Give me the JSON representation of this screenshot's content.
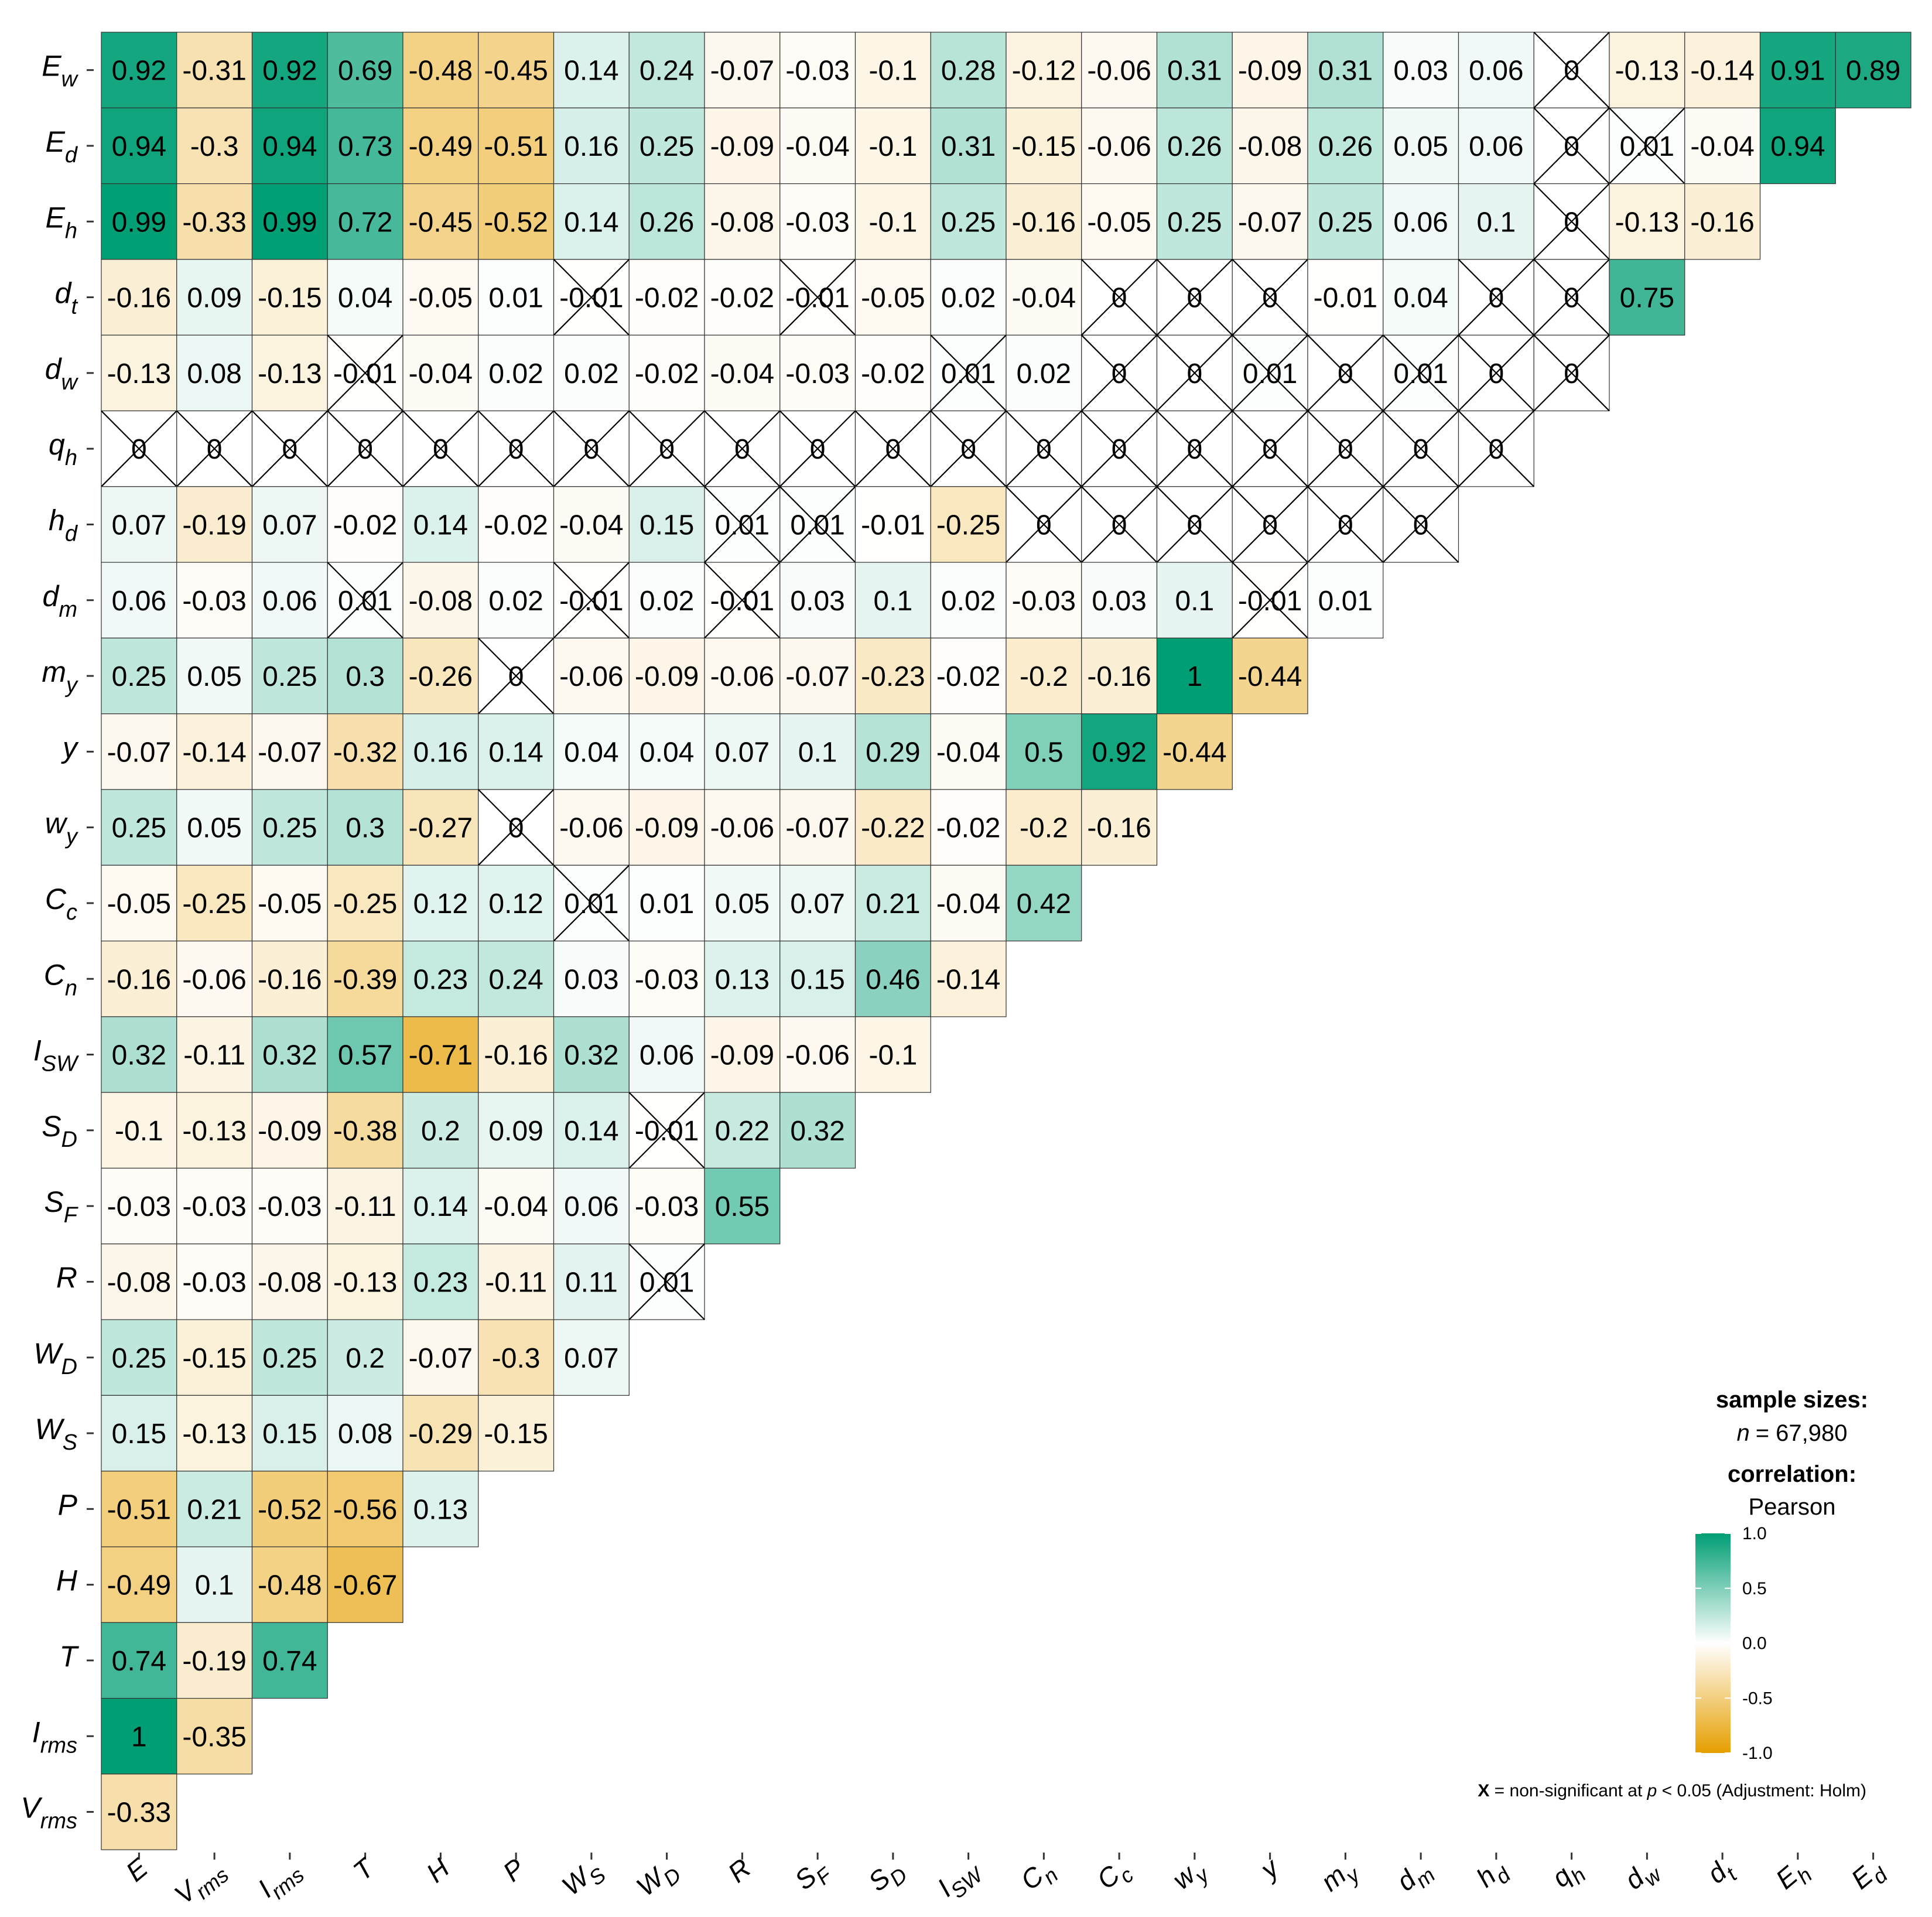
{
  "chart_data": {
    "type": "heatmap",
    "title": "",
    "correlation_method_label": "Pearson",
    "x_labels": [
      {
        "base": "E",
        "sub": ""
      },
      {
        "base": "V",
        "sub": "rms"
      },
      {
        "base": "I",
        "sub": "rms"
      },
      {
        "base": "T",
        "sub": ""
      },
      {
        "base": "H",
        "sub": ""
      },
      {
        "base": "P",
        "sub": ""
      },
      {
        "base": "W",
        "sub": "S"
      },
      {
        "base": "W",
        "sub": "D"
      },
      {
        "base": "R",
        "sub": ""
      },
      {
        "base": "S",
        "sub": "F"
      },
      {
        "base": "S",
        "sub": "D"
      },
      {
        "base": "I",
        "sub": "SW"
      },
      {
        "base": "C",
        "sub": "n"
      },
      {
        "base": "C",
        "sub": "c"
      },
      {
        "base": "w",
        "sub": "y"
      },
      {
        "base": "y",
        "sub": ""
      },
      {
        "base": "m",
        "sub": "y"
      },
      {
        "base": "d",
        "sub": "m"
      },
      {
        "base": "h",
        "sub": "d"
      },
      {
        "base": "q",
        "sub": "h"
      },
      {
        "base": "d",
        "sub": "w"
      },
      {
        "base": "d",
        "sub": "t"
      },
      {
        "base": "E",
        "sub": "h"
      },
      {
        "base": "E",
        "sub": "d"
      }
    ],
    "y_labels": [
      {
        "base": "E",
        "sub": "w"
      },
      {
        "base": "E",
        "sub": "d"
      },
      {
        "base": "E",
        "sub": "h"
      },
      {
        "base": "d",
        "sub": "t"
      },
      {
        "base": "d",
        "sub": "w"
      },
      {
        "base": "q",
        "sub": "h"
      },
      {
        "base": "h",
        "sub": "d"
      },
      {
        "base": "d",
        "sub": "m"
      },
      {
        "base": "m",
        "sub": "y"
      },
      {
        "base": "y",
        "sub": ""
      },
      {
        "base": "w",
        "sub": "y"
      },
      {
        "base": "C",
        "sub": "c"
      },
      {
        "base": "C",
        "sub": "n"
      },
      {
        "base": "I",
        "sub": "SW"
      },
      {
        "base": "S",
        "sub": "D"
      },
      {
        "base": "S",
        "sub": "F"
      },
      {
        "base": "R",
        "sub": ""
      },
      {
        "base": "W",
        "sub": "D"
      },
      {
        "base": "W",
        "sub": "S"
      },
      {
        "base": "P",
        "sub": ""
      },
      {
        "base": "H",
        "sub": ""
      },
      {
        "base": "T",
        "sub": ""
      },
      {
        "base": "I",
        "sub": "rms"
      },
      {
        "base": "V",
        "sub": "rms"
      }
    ],
    "values": [
      [
        "0.92",
        "-0.31",
        "0.92",
        "0.69",
        "-0.48",
        "-0.45",
        "0.14",
        "0.24",
        "-0.07",
        "-0.03",
        "-0.1",
        "0.28",
        "-0.12",
        "-0.06",
        "0.31",
        "-0.09",
        "0.31",
        "0.03",
        "0.06",
        "0",
        "-0.13",
        "-0.14",
        "0.91",
        "0.89"
      ],
      [
        "0.94",
        "-0.3",
        "0.94",
        "0.73",
        "-0.49",
        "-0.51",
        "0.16",
        "0.25",
        "-0.09",
        "-0.04",
        "-0.1",
        "0.31",
        "-0.15",
        "-0.06",
        "0.26",
        "-0.08",
        "0.26",
        "0.05",
        "0.06",
        "0",
        "0.01",
        "-0.04",
        "0.94"
      ],
      [
        "0.99",
        "-0.33",
        "0.99",
        "0.72",
        "-0.45",
        "-0.52",
        "0.14",
        "0.26",
        "-0.08",
        "-0.03",
        "-0.1",
        "0.25",
        "-0.16",
        "-0.05",
        "0.25",
        "-0.07",
        "0.25",
        "0.06",
        "0.1",
        "0",
        "-0.13",
        "-0.16"
      ],
      [
        "-0.16",
        "0.09",
        "-0.15",
        "0.04",
        "-0.05",
        "0.01",
        "-0.01",
        "-0.02",
        "-0.02",
        "-0.01",
        "-0.05",
        "0.02",
        "-0.04",
        "0",
        "0",
        "0",
        "-0.01",
        "0.04",
        "0",
        "0",
        "0.75"
      ],
      [
        "-0.13",
        "0.08",
        "-0.13",
        "-0.01",
        "-0.04",
        "0.02",
        "0.02",
        "-0.02",
        "-0.04",
        "-0.03",
        "-0.02",
        "0.01",
        "0.02",
        "0",
        "0",
        "0.01",
        "0",
        "0.01",
        "0",
        "0"
      ],
      [
        "0",
        "0",
        "0",
        "0",
        "0",
        "0",
        "0",
        "0",
        "0",
        "0",
        "0",
        "0",
        "0",
        "0",
        "0",
        "0",
        "0",
        "0",
        "0"
      ],
      [
        "0.07",
        "-0.19",
        "0.07",
        "-0.02",
        "0.14",
        "-0.02",
        "-0.04",
        "0.15",
        "0.01",
        "0.01",
        "-0.01",
        "-0.25",
        "0",
        "0",
        "0",
        "0",
        "0",
        "0"
      ],
      [
        "0.06",
        "-0.03",
        "0.06",
        "0.01",
        "-0.08",
        "0.02",
        "-0.01",
        "0.02",
        "-0.01",
        "0.03",
        "0.1",
        "0.02",
        "-0.03",
        "0.03",
        "0.1",
        "-0.01",
        "0.01"
      ],
      [
        "0.25",
        "0.05",
        "0.25",
        "0.3",
        "-0.26",
        "0",
        "-0.06",
        "-0.09",
        "-0.06",
        "-0.07",
        "-0.23",
        "-0.02",
        "-0.2",
        "-0.16",
        "1",
        "-0.44"
      ],
      [
        "-0.07",
        "-0.14",
        "-0.07",
        "-0.32",
        "0.16",
        "0.14",
        "0.04",
        "0.04",
        "0.07",
        "0.1",
        "0.29",
        "-0.04",
        "0.5",
        "0.92",
        "-0.44"
      ],
      [
        "0.25",
        "0.05",
        "0.25",
        "0.3",
        "-0.27",
        "0",
        "-0.06",
        "-0.09",
        "-0.06",
        "-0.07",
        "-0.22",
        "-0.02",
        "-0.2",
        "-0.16"
      ],
      [
        "-0.05",
        "-0.25",
        "-0.05",
        "-0.25",
        "0.12",
        "0.12",
        "0.01",
        "0.01",
        "0.05",
        "0.07",
        "0.21",
        "-0.04",
        "0.42"
      ],
      [
        "-0.16",
        "-0.06",
        "-0.16",
        "-0.39",
        "0.23",
        "0.24",
        "0.03",
        "-0.03",
        "0.13",
        "0.15",
        "0.46",
        "-0.14"
      ],
      [
        "0.32",
        "-0.11",
        "0.32",
        "0.57",
        "-0.71",
        "-0.16",
        "0.32",
        "0.06",
        "-0.09",
        "-0.06",
        "-0.1"
      ],
      [
        "-0.1",
        "-0.13",
        "-0.09",
        "-0.38",
        "0.2",
        "0.09",
        "0.14",
        "-0.01",
        "0.22",
        "0.32"
      ],
      [
        "-0.03",
        "-0.03",
        "-0.03",
        "-0.11",
        "0.14",
        "-0.04",
        "0.06",
        "-0.03",
        "0.55"
      ],
      [
        "-0.08",
        "-0.03",
        "-0.08",
        "-0.13",
        "0.23",
        "-0.11",
        "0.11",
        "0.01"
      ],
      [
        "0.25",
        "-0.15",
        "0.25",
        "0.2",
        "-0.07",
        "-0.3",
        "0.07"
      ],
      [
        "0.15",
        "-0.13",
        "0.15",
        "0.08",
        "-0.29",
        "-0.15"
      ],
      [
        "-0.51",
        "0.21",
        "-0.52",
        "-0.56",
        "0.13"
      ],
      [
        "-0.49",
        "0.1",
        "-0.48",
        "-0.67"
      ],
      [
        "0.74",
        "-0.19",
        "0.74"
      ],
      [
        "1",
        "-0.35"
      ],
      [
        "-0.33"
      ]
    ],
    "crossed": [
      [
        19
      ],
      [
        19,
        20
      ],
      [
        19
      ],
      [
        6,
        9,
        13,
        14,
        15,
        18,
        19
      ],
      [
        3,
        11,
        13,
        14,
        15,
        16,
        17,
        18,
        19
      ],
      [
        0,
        1,
        2,
        3,
        4,
        5,
        6,
        7,
        8,
        9,
        10,
        11,
        12,
        13,
        14,
        15,
        16,
        17,
        18
      ],
      [
        8,
        9,
        12,
        13,
        14,
        15,
        16,
        17
      ],
      [
        3,
        6,
        8,
        15
      ],
      [
        5
      ],
      [],
      [
        5
      ],
      [
        6
      ],
      [],
      [],
      [
        7
      ],
      [],
      [
        7
      ],
      [],
      [],
      [],
      [],
      [],
      [],
      []
    ],
    "legend": {
      "sample_sizes_title": "sample sizes:",
      "n_symbol": "n",
      "n_value": "= 67,980",
      "correlation_title": "correlation:",
      "method": "Pearson",
      "ticks": [
        "1.0",
        "0.5",
        "0.0",
        "-0.5",
        "-1.0"
      ],
      "tick_values": [
        1.0,
        0.5,
        0.0,
        -0.5,
        -1.0
      ]
    },
    "colors": {
      "positive": "#009E73",
      "zero": "#FFFFFF",
      "negative": "#E69F00",
      "grid_line": "#333333",
      "cross_line": "#000000"
    },
    "value_range": [
      -1,
      1
    ],
    "footnote": {
      "symbol": "X",
      "text_before_p": " = non-significant at ",
      "p_symbol": "p",
      "text_after_p": " < 0.05 (Adjustment: Holm)"
    }
  }
}
